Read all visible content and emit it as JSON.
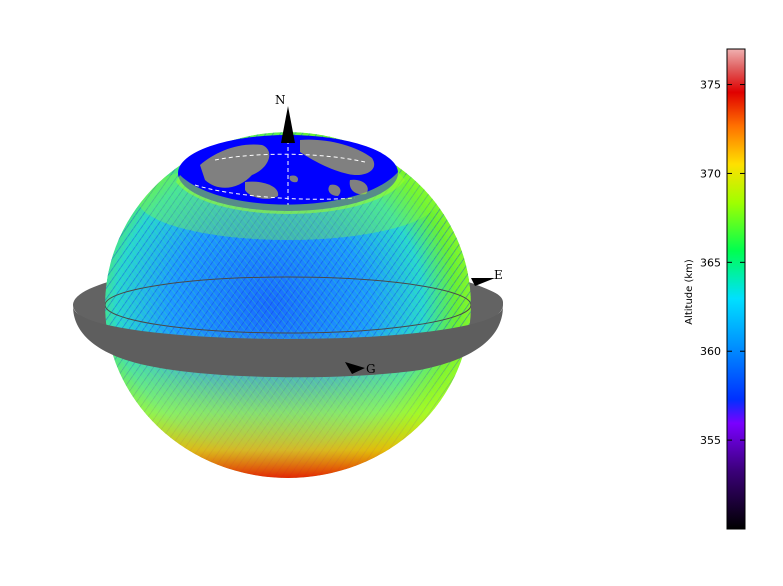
{
  "markers": {
    "north": "N",
    "east": "E",
    "greenwich": "G"
  },
  "colorbar": {
    "label": "Altitude (km)",
    "ticks": [
      "375",
      "370",
      "365",
      "360",
      "355"
    ],
    "range": [
      350,
      377
    ]
  },
  "chart_data": {
    "type": "heatmap",
    "title": "",
    "colorbar_label": "Altitude (km)",
    "colorbar_range": [
      350,
      377
    ],
    "colorbar_ticks": [
      355,
      360,
      365,
      370,
      375
    ],
    "colormap": [
      "#000000",
      "#3a0078",
      "#7a00ff",
      "#0040ff",
      "#00b4ff",
      "#00ff78",
      "#b4ff00",
      "#ffd200",
      "#ff5a00",
      "#e00000",
      "#f0a0a0"
    ],
    "globe_colors": {
      "ocean": "#0000ff",
      "land": "#808080",
      "equator_ring": "#606060"
    }
  }
}
